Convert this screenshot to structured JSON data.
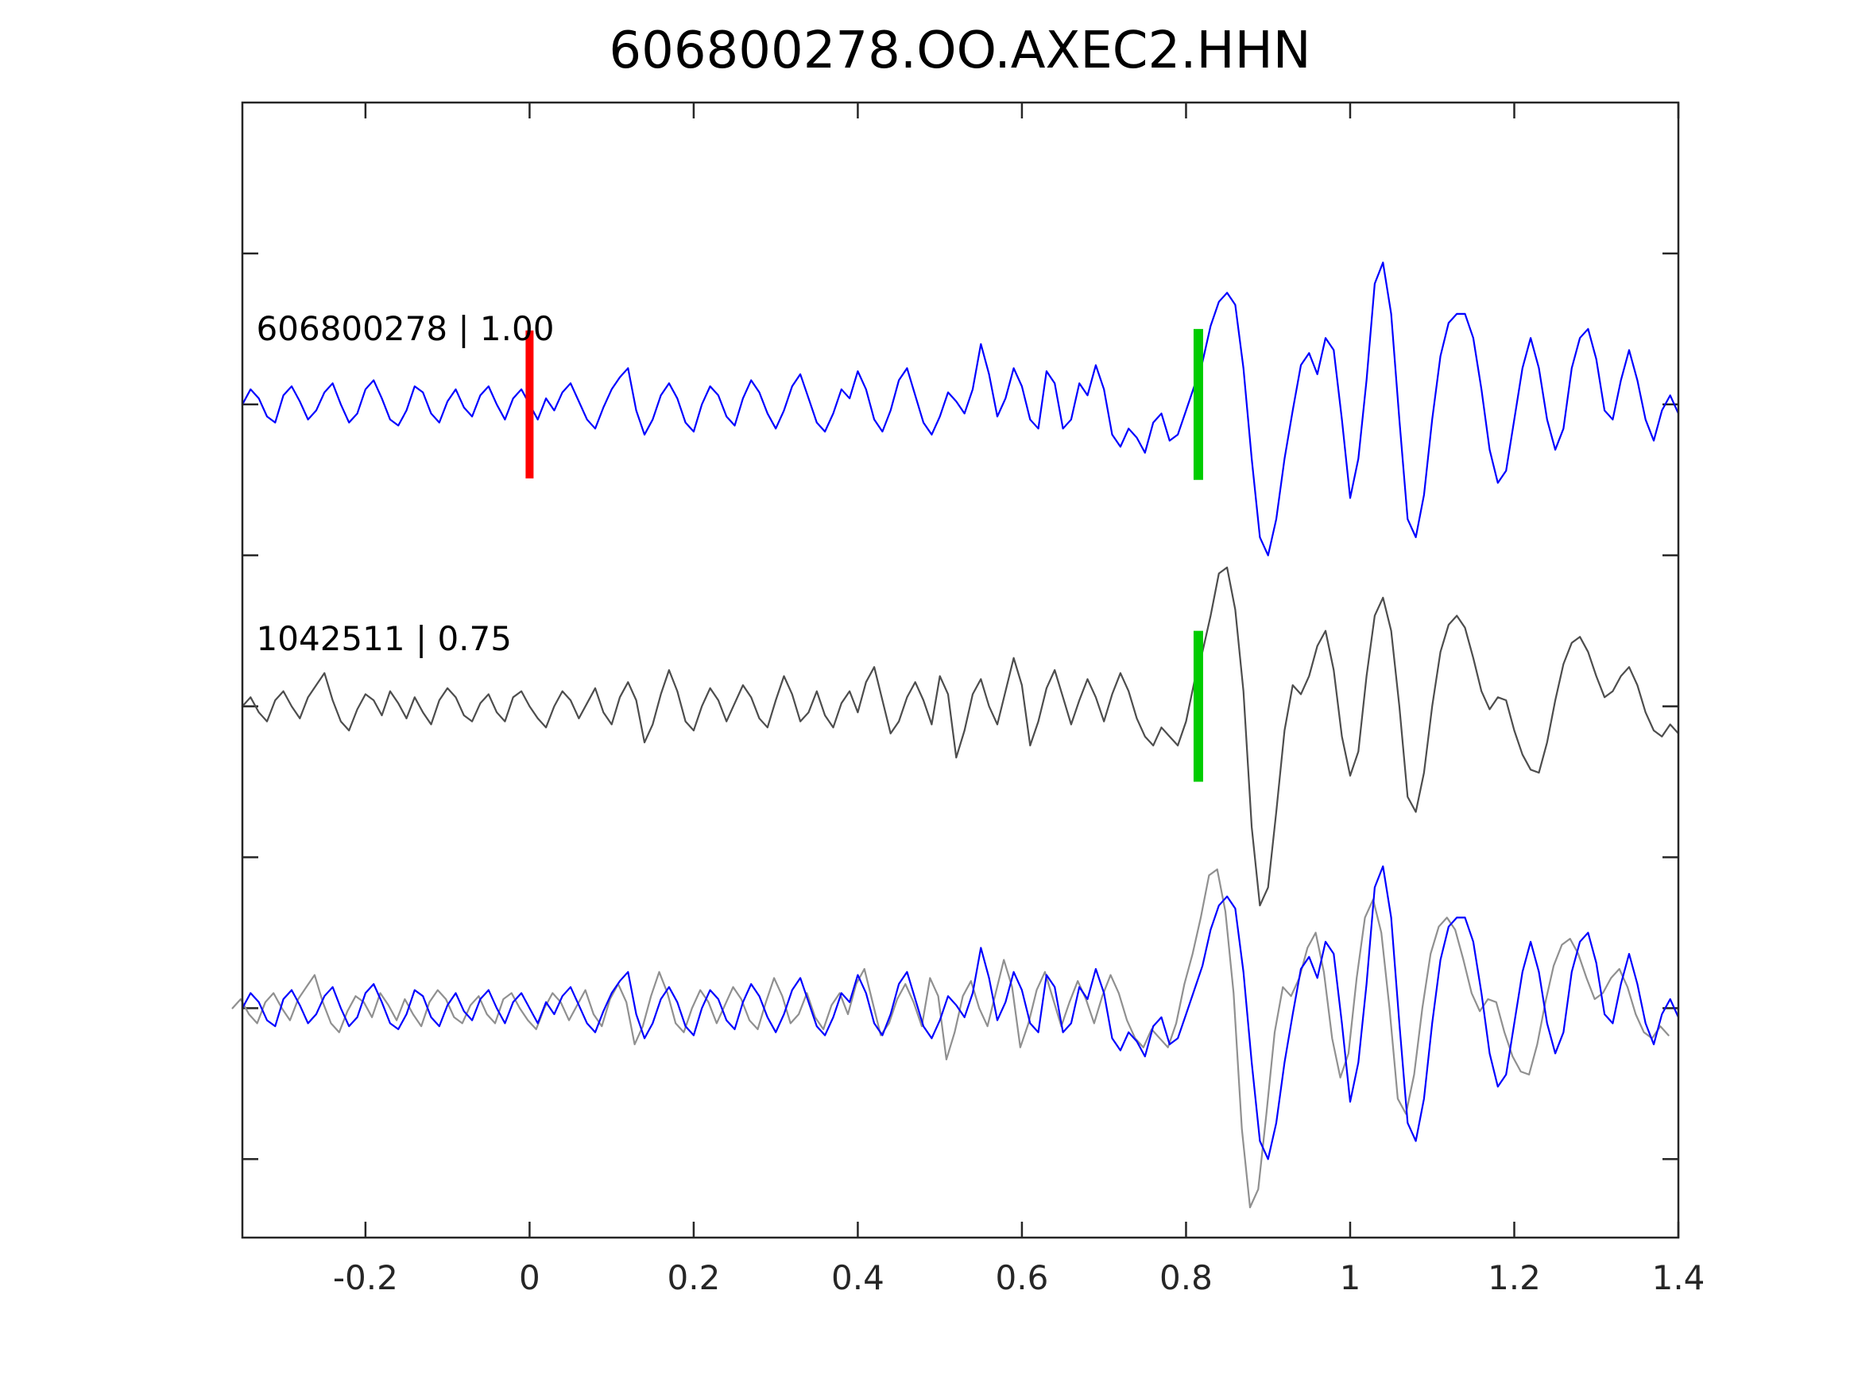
{
  "figure": {
    "title": "606800278.OO.AXEC2.HHN",
    "background": "#ffffff",
    "axis_color": "#262626"
  },
  "chart_data": {
    "type": "line",
    "title": "606800278.OO.AXEC2.HHN",
    "xlabel": "",
    "ylabel": "",
    "grid": false,
    "legend_position": "none",
    "xlim": [
      -0.35,
      1.4
    ],
    "ylim": [
      -0.76,
      3.0
    ],
    "xticks": [
      -0.2,
      0,
      0.2,
      0.4,
      0.6,
      0.8,
      1,
      1.2,
      1.4
    ],
    "xtick_labels": [
      "-0.2",
      "0",
      "0.2",
      "0.4",
      "0.6",
      "0.8",
      "1",
      "1.2",
      "1.4"
    ],
    "yticks": [
      -0.5,
      0,
      0.5,
      1,
      1.5,
      2,
      2.5
    ],
    "ytick_labels": [],
    "x_start": -0.35,
    "dt": 0.01,
    "series": [
      {
        "name": "606800278",
        "label": "606800278 | 1.00",
        "color": "#0000ff",
        "offset": 2,
        "line_width": 2.2,
        "values": [
          0.0,
          0.05,
          0.02,
          -0.04,
          -0.06,
          0.03,
          0.06,
          0.01,
          -0.05,
          -0.02,
          0.04,
          0.07,
          0.0,
          -0.06,
          -0.03,
          0.05,
          0.08,
          0.02,
          -0.05,
          -0.07,
          -0.02,
          0.06,
          0.04,
          -0.03,
          -0.06,
          0.01,
          0.05,
          -0.01,
          -0.04,
          0.03,
          0.06,
          0.0,
          -0.05,
          0.02,
          0.05,
          0.0,
          -0.05,
          0.02,
          -0.02,
          0.04,
          0.07,
          0.01,
          -0.05,
          -0.08,
          -0.01,
          0.05,
          0.09,
          0.12,
          -0.02,
          -0.1,
          -0.05,
          0.03,
          0.07,
          0.02,
          -0.06,
          -0.09,
          0.0,
          0.06,
          0.03,
          -0.04,
          -0.07,
          0.02,
          0.08,
          0.04,
          -0.03,
          -0.08,
          -0.02,
          0.06,
          0.1,
          0.02,
          -0.06,
          -0.09,
          -0.03,
          0.05,
          0.02,
          0.11,
          0.05,
          -0.05,
          -0.09,
          -0.02,
          0.08,
          0.12,
          0.03,
          -0.06,
          -0.1,
          -0.04,
          0.04,
          0.01,
          -0.03,
          0.05,
          0.2,
          0.1,
          -0.04,
          0.02,
          0.12,
          0.06,
          -0.05,
          -0.08,
          0.11,
          0.07,
          -0.08,
          -0.05,
          0.07,
          0.03,
          0.13,
          0.05,
          -0.1,
          -0.14,
          -0.08,
          -0.11,
          -0.16,
          -0.06,
          -0.03,
          -0.12,
          -0.1,
          -0.02,
          0.06,
          0.14,
          0.26,
          0.34,
          0.37,
          0.33,
          0.12,
          -0.18,
          -0.44,
          -0.5,
          -0.38,
          -0.18,
          -0.02,
          0.13,
          0.17,
          0.1,
          0.22,
          0.18,
          -0.05,
          -0.31,
          -0.18,
          0.08,
          0.4,
          0.47,
          0.3,
          -0.05,
          -0.38,
          -0.44,
          -0.3,
          -0.05,
          0.16,
          0.27,
          0.3,
          0.3,
          0.22,
          0.05,
          -0.15,
          -0.26,
          -0.22,
          -0.05,
          0.12,
          0.22,
          0.12,
          -0.05,
          -0.15,
          -0.08,
          0.12,
          0.22,
          0.25,
          0.15,
          -0.02,
          -0.05,
          0.08,
          0.18,
          0.08,
          -0.05,
          -0.12,
          -0.02,
          0.03,
          -0.03
        ]
      },
      {
        "name": "1042511",
        "label": "1042511 | 0.75",
        "color": "#4d4d4d",
        "offset": 1,
        "line_width": 2.2,
        "values": [
          0.0,
          0.03,
          -0.02,
          -0.05,
          0.02,
          0.05,
          0.0,
          -0.04,
          0.03,
          0.07,
          0.11,
          0.02,
          -0.05,
          -0.08,
          -0.01,
          0.04,
          0.02,
          -0.03,
          0.05,
          0.01,
          -0.04,
          0.03,
          -0.02,
          -0.06,
          0.02,
          0.06,
          0.03,
          -0.03,
          -0.05,
          0.01,
          0.04,
          -0.02,
          -0.05,
          0.03,
          0.05,
          0.0,
          -0.04,
          -0.07,
          0.0,
          0.05,
          0.02,
          -0.04,
          0.01,
          0.06,
          -0.02,
          -0.06,
          0.03,
          0.08,
          0.02,
          -0.12,
          -0.06,
          0.04,
          0.12,
          0.05,
          -0.05,
          -0.08,
          0.0,
          0.06,
          0.02,
          -0.05,
          0.01,
          0.07,
          0.03,
          -0.04,
          -0.07,
          0.02,
          0.1,
          0.04,
          -0.05,
          -0.02,
          0.05,
          -0.03,
          -0.07,
          0.01,
          0.05,
          -0.02,
          0.08,
          0.13,
          0.02,
          -0.09,
          -0.05,
          0.03,
          0.08,
          0.02,
          -0.06,
          0.1,
          0.04,
          -0.17,
          -0.08,
          0.04,
          0.09,
          0.0,
          -0.06,
          0.05,
          0.16,
          0.07,
          -0.13,
          -0.05,
          0.06,
          0.12,
          0.03,
          -0.06,
          0.02,
          0.09,
          0.03,
          -0.05,
          0.04,
          0.11,
          0.05,
          -0.04,
          -0.1,
          -0.13,
          -0.07,
          -0.1,
          -0.13,
          -0.05,
          0.08,
          0.18,
          0.3,
          0.44,
          0.46,
          0.32,
          0.05,
          -0.4,
          -0.66,
          -0.6,
          -0.35,
          -0.08,
          0.07,
          0.04,
          0.1,
          0.2,
          0.25,
          0.12,
          -0.1,
          -0.23,
          -0.15,
          0.1,
          0.3,
          0.36,
          0.25,
          0.0,
          -0.3,
          -0.35,
          -0.22,
          0.0,
          0.18,
          0.27,
          0.3,
          0.26,
          0.16,
          0.05,
          -0.01,
          0.03,
          0.02,
          -0.08,
          -0.16,
          -0.21,
          -0.22,
          -0.12,
          0.02,
          0.14,
          0.21,
          0.23,
          0.18,
          0.1,
          0.03,
          0.05,
          0.1,
          0.13,
          0.07,
          -0.02,
          -0.08,
          -0.1,
          -0.06,
          -0.09
        ]
      },
      {
        "name": "overlay-1042511",
        "label": "",
        "color": "#909090",
        "offset": 0,
        "line_width": 2.2,
        "source": "1042511",
        "t_shift": -0.012
      },
      {
        "name": "overlay-606800278",
        "label": "",
        "color": "#0000ff",
        "offset": 0,
        "line_width": 2.2,
        "source": "606800278",
        "t_shift": 0
      }
    ],
    "picks": [
      {
        "name": "reference-pick-red",
        "t": 0.0,
        "offset": 2,
        "half_height": 0.245,
        "color": "#ff0000",
        "width": 10
      },
      {
        "name": "arrival-pick-green-606800278",
        "t": 0.815,
        "offset": 2,
        "half_height": 0.25,
        "color": "#00cc00",
        "width": 12
      },
      {
        "name": "arrival-pick-green-1042511",
        "t": 0.815,
        "offset": 1,
        "half_height": 0.25,
        "color": "#00cc00",
        "width": 12
      }
    ],
    "annotations": [
      {
        "name": "trace-label-606800278",
        "text": "606800278 | 1.00",
        "t": -0.333,
        "v": 2.213
      },
      {
        "name": "trace-label-1042511",
        "text": "1042511 | 0.75",
        "t": -0.333,
        "v": 1.186
      }
    ]
  }
}
